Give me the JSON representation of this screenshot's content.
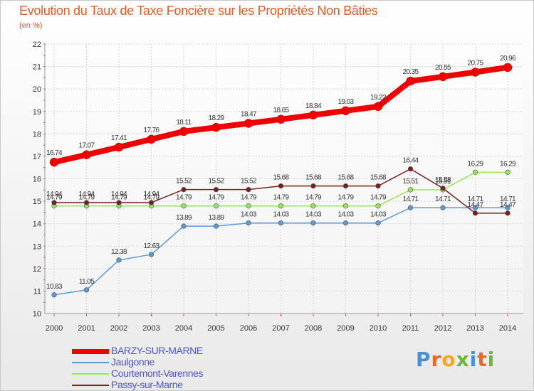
{
  "header": {
    "title": "Evolution du Taux de Taxe Foncière sur les Propriétés Non Bâties",
    "unit": "(en %)"
  },
  "brand": {
    "text": "Proxiti",
    "colors": [
      "#4a8fd6",
      "#e86a2a",
      "#f2a81d",
      "#6fb53c",
      "#4a8fd6",
      "#e86a2a",
      "#6fb53c"
    ]
  },
  "chart_data": {
    "type": "line",
    "title": "Evolution du Taux de Taxe Foncière sur les Propriétés Non Bâties",
    "ylabel": "(en %)",
    "xlabel": "",
    "ylim": [
      10,
      22
    ],
    "yticks": [
      "10",
      "11",
      "12",
      "13",
      "14",
      "15",
      "16",
      "17",
      "18",
      "19",
      "20",
      "21",
      "22"
    ],
    "categories": [
      "2000",
      "2001",
      "2002",
      "2003",
      "2004",
      "2005",
      "2006",
      "2007",
      "2008",
      "2009",
      "2010",
      "2011",
      "2012",
      "2013",
      "2014"
    ],
    "grid": true,
    "legend_position": "bottom-left",
    "series": [
      {
        "name": "BARZY-SUR-MARNE",
        "color": "#ee0000",
        "values": [
          16.74,
          17.07,
          17.41,
          17.76,
          18.11,
          18.29,
          18.47,
          18.65,
          18.84,
          19.03,
          19.22,
          20.35,
          20.55,
          20.75,
          20.96
        ],
        "labels": [
          "16.74",
          "17.07",
          "17.41",
          "17.76",
          "18.11",
          "18.29",
          "18.47",
          "18.65",
          "18.84",
          "19.03",
          "19.22",
          "20.35",
          "20.55",
          "20.75",
          "20.96"
        ]
      },
      {
        "name": "Jaulgonne",
        "color": "#5b9bd5",
        "values": [
          10.83,
          11.05,
          12.38,
          12.63,
          13.89,
          13.89,
          14.03,
          14.03,
          14.03,
          14.03,
          14.03,
          14.71,
          14.71,
          14.71,
          14.71
        ],
        "labels": [
          "10.83",
          "11.05",
          "12.38",
          "12.63",
          "13.89",
          "13.89",
          "14.03",
          "14.03",
          "14.03",
          "14.03",
          "14.03",
          "14.71",
          "14.71",
          "14.71",
          "14.71"
        ]
      },
      {
        "name": "Courtemont-Varennes",
        "color": "#99e55a",
        "values": [
          14.79,
          14.79,
          14.79,
          14.79,
          14.79,
          14.79,
          14.79,
          14.79,
          14.79,
          14.79,
          14.79,
          15.51,
          15.51,
          16.29,
          16.29
        ],
        "labels": [
          "14.79",
          "14.79",
          "14.79",
          "14.79",
          "14.79",
          "14.79",
          "14.79",
          "14.79",
          "14.79",
          "14.79",
          "14.79",
          "15.51",
          "15.51",
          "16.29",
          "16.29"
        ]
      },
      {
        "name": "Passy-sur-Marne",
        "color": "#7a1e1e",
        "values": [
          14.94,
          14.94,
          14.94,
          14.94,
          15.52,
          15.52,
          15.52,
          15.68,
          15.68,
          15.68,
          15.68,
          16.44,
          15.58,
          14.47,
          14.47
        ],
        "labels": [
          "14.94",
          "14.94",
          "14.94",
          "14.94",
          "15.52",
          "15.52",
          "15.52",
          "15.68",
          "15.68",
          "15.68",
          "15.68",
          "16.44",
          "15.58",
          "14.47",
          "14.47"
        ]
      }
    ]
  }
}
